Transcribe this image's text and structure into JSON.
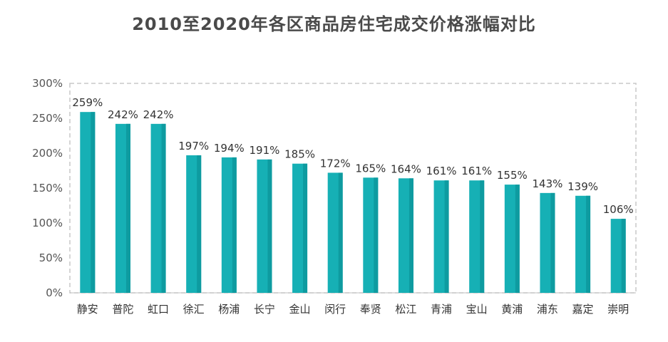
{
  "chart_data": {
    "type": "bar",
    "title": "2010至2020年各区商品房住宅成交价格涨幅对比",
    "xlabel": "",
    "ylabel": "",
    "categories": [
      "静安",
      "普陀",
      "虹口",
      "徐汇",
      "杨浦",
      "长宁",
      "金山",
      "闵行",
      "奉贤",
      "松江",
      "青浦",
      "宝山",
      "黄浦",
      "浦东",
      "嘉定",
      "崇明"
    ],
    "values": [
      259,
      242,
      242,
      197,
      194,
      191,
      185,
      172,
      165,
      164,
      161,
      161,
      155,
      143,
      139,
      106
    ],
    "data_labels": [
      "259%",
      "242%",
      "242%",
      "197%",
      "194%",
      "191%",
      "185%",
      "172%",
      "165%",
      "164%",
      "161%",
      "161%",
      "155%",
      "143%",
      "139%",
      "106%"
    ],
    "ylim": [
      0,
      300
    ],
    "yticks": [
      0,
      50,
      100,
      150,
      200,
      250,
      300
    ],
    "ytick_labels": [
      "0%",
      "50%",
      "100%",
      "150%",
      "200%",
      "250%",
      "300%"
    ],
    "grid": false,
    "legend": "none",
    "colors": {
      "bar_main": "#16b0b5",
      "bar_shade": "#0e9ba0",
      "axis": "#bfbfbf",
      "plot_border": "#c8c8c8"
    }
  }
}
